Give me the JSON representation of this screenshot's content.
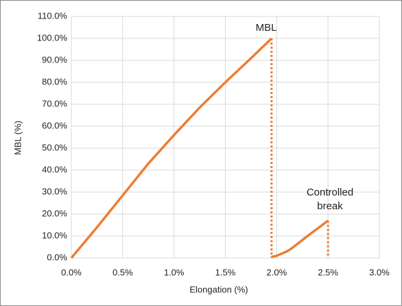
{
  "chart_data": {
    "type": "line",
    "x_label": "Elongation (%)",
    "y_label": "MBL (%)",
    "xlim": [
      0,
      3
    ],
    "ylim": [
      0,
      110
    ],
    "grid": true,
    "xticks": [
      {
        "value": 0,
        "label": "0.0%"
      },
      {
        "value": 0.5,
        "label": "0.5%"
      },
      {
        "value": 1,
        "label": "1.0%"
      },
      {
        "value": 1.5,
        "label": "1.5%"
      },
      {
        "value": 2,
        "label": "2.0%"
      },
      {
        "value": 2.5,
        "label": "2.5%"
      },
      {
        "value": 3,
        "label": "3.0%"
      }
    ],
    "yticks": [
      {
        "value": 0,
        "label": "0.0%"
      },
      {
        "value": 10,
        "label": "10.0%"
      },
      {
        "value": 20,
        "label": "20.0%"
      },
      {
        "value": 30,
        "label": "30.0%"
      },
      {
        "value": 40,
        "label": "40.0%"
      },
      {
        "value": 50,
        "label": "50.0%"
      },
      {
        "value": 60,
        "label": "60.0%"
      },
      {
        "value": 70,
        "label": "70.0%"
      },
      {
        "value": 80,
        "label": "80.0%"
      },
      {
        "value": 90,
        "label": "90.0%"
      },
      {
        "value": 100,
        "label": "100.0%"
      },
      {
        "value": 110,
        "label": "110.0%"
      }
    ],
    "series": [
      {
        "color": "#ED7D31",
        "dashed": false,
        "x": [
          0,
          0.25,
          0.5,
          0.75,
          1.0,
          1.25,
          1.5,
          1.75,
          1.95,
          null,
          1.95,
          2.0,
          2.1,
          2.15,
          2.3,
          2.5
        ],
        "values": [
          0,
          14,
          28.5,
          43,
          56,
          68.5,
          80,
          91,
          100,
          null,
          0.5,
          1,
          3,
          4.5,
          10,
          17
        ]
      },
      {
        "color": "#ED7D31",
        "dashed": true,
        "x": [
          1.95,
          1.95,
          null,
          2.5,
          2.5
        ],
        "values": [
          100,
          0,
          null,
          17,
          0
        ]
      }
    ],
    "annotations": [
      "MBL",
      "Controlled break"
    ]
  }
}
